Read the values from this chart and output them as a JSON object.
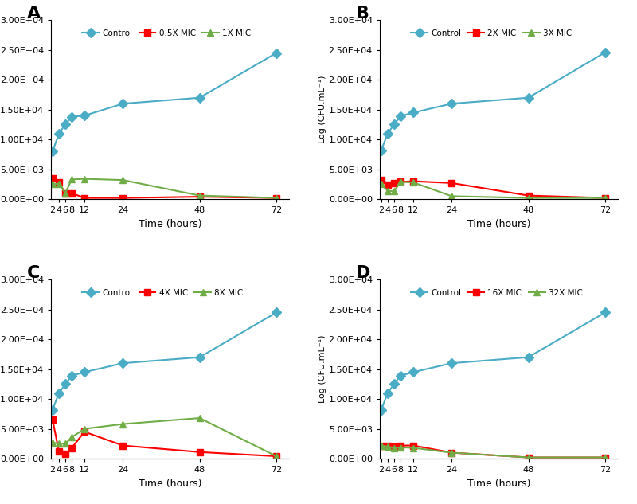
{
  "time_points": [
    2,
    4,
    6,
    8,
    12,
    24,
    48,
    72
  ],
  "panels": [
    {
      "label": "A",
      "series": [
        {
          "name": "Control",
          "color": "#4BACC6",
          "marker": "D",
          "values": [
            8000,
            11000,
            12500,
            13800,
            14000,
            16000,
            17000,
            24500
          ]
        },
        {
          "name": "0.5X MIC",
          "color": "#FF0000",
          "marker": "s",
          "values": [
            3500,
            2800,
            1000,
            1000,
            200,
            200,
            400,
            200
          ]
        },
        {
          "name": "1X MIC",
          "color": "#70AD47",
          "marker": "^",
          "values": [
            2500,
            2600,
            1000,
            3300,
            3400,
            3200,
            600,
            200
          ]
        }
      ]
    },
    {
      "label": "B",
      "series": [
        {
          "name": "Control",
          "color": "#4BACC6",
          "marker": "D",
          "values": [
            8200,
            11000,
            12500,
            13900,
            14500,
            16000,
            17000,
            24600
          ]
        },
        {
          "name": "2X MIC",
          "color": "#FF0000",
          "marker": "s",
          "values": [
            3200,
            2400,
            2700,
            2900,
            3000,
            2700,
            600,
            200
          ]
        },
        {
          "name": "3X MIC",
          "color": "#70AD47",
          "marker": "^",
          "values": [
            2500,
            1400,
            1300,
            2900,
            2800,
            500,
            200,
            200
          ]
        }
      ]
    },
    {
      "label": "C",
      "series": [
        {
          "name": "Control",
          "color": "#4BACC6",
          "marker": "D",
          "values": [
            8200,
            11000,
            12500,
            13900,
            14500,
            16000,
            17000,
            24500
          ]
        },
        {
          "name": "4X MIC",
          "color": "#FF0000",
          "marker": "s",
          "values": [
            6500,
            1200,
            800,
            1800,
            4500,
            2200,
            1100,
            400
          ]
        },
        {
          "name": "8X MIC",
          "color": "#70AD47",
          "marker": "^",
          "values": [
            2700,
            2500,
            2500,
            3600,
            5000,
            5800,
            6800,
            400
          ]
        }
      ]
    },
    {
      "label": "D",
      "series": [
        {
          "name": "Control",
          "color": "#4BACC6",
          "marker": "D",
          "values": [
            8200,
            11000,
            12500,
            13900,
            14500,
            16000,
            17000,
            24500
          ]
        },
        {
          "name": "16X MIC",
          "color": "#FF0000",
          "marker": "s",
          "values": [
            2200,
            2200,
            2000,
            2200,
            2200,
            1000,
            200,
            200
          ]
        },
        {
          "name": "32X MIC",
          "color": "#70AD47",
          "marker": "^",
          "values": [
            2200,
            2000,
            1800,
            1900,
            1800,
            1000,
            200,
            200
          ]
        }
      ]
    }
  ],
  "ylim": [
    0,
    30000
  ],
  "yticks": [
    0,
    5000,
    10000,
    15000,
    20000,
    25000,
    30000
  ],
  "ytick_labels": [
    "0.00E+00",
    "5.00E+03",
    "1.00E+04",
    "1.50E+04",
    "2.00E+04",
    "2.50E+04",
    "3.00E+04"
  ],
  "xlabel": "Time (hours)",
  "ylabel": "Log (CFU.mL⁻¹)",
  "background_color": "#FFFFFF",
  "linewidth": 1.5,
  "markersize": 6
}
